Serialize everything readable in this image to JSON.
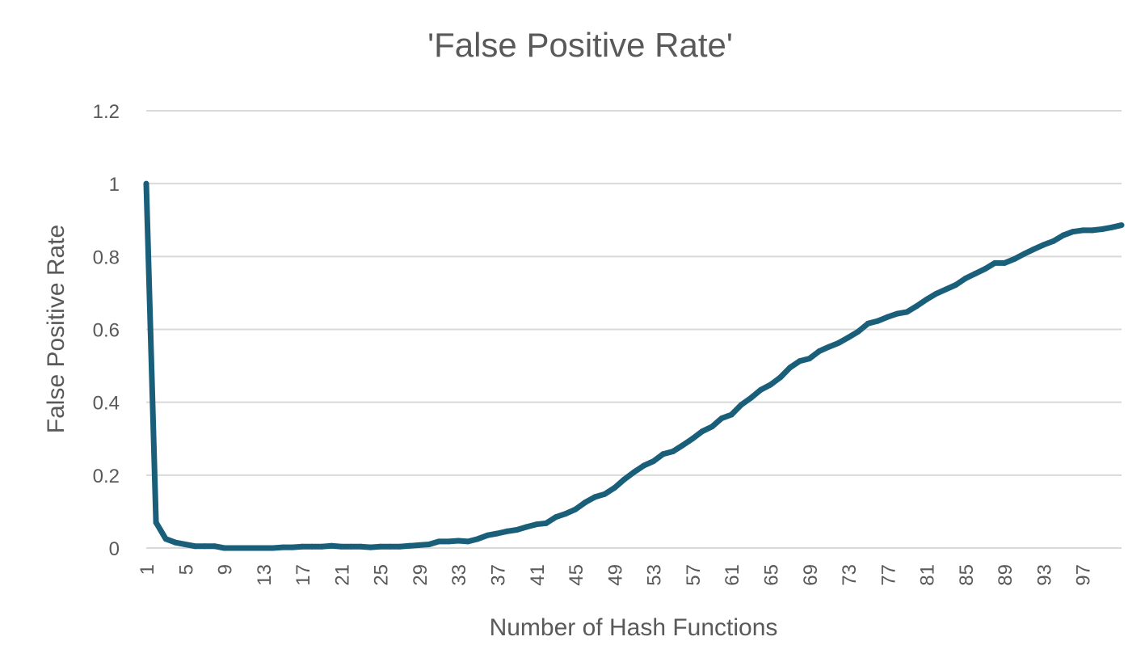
{
  "chart_data": {
    "type": "line",
    "title": "'False Positive Rate'",
    "xlabel": "Number of Hash Functions",
    "ylabel": "False Positive Rate",
    "ylim": [
      0,
      1.2
    ],
    "yticks": [
      0,
      0.2,
      0.4,
      0.6,
      0.8,
      1,
      1.2
    ],
    "ytick_labels": [
      "0",
      "0.2",
      "0.4",
      "0.6",
      "0.8",
      "1",
      "1.2"
    ],
    "xticks": [
      "1",
      "5",
      "9",
      "13",
      "17",
      "21",
      "25",
      "29",
      "33",
      "37",
      "41",
      "45",
      "49",
      "53",
      "57",
      "61",
      "65",
      "69",
      "73",
      "77",
      "81",
      "85",
      "89",
      "93",
      "97"
    ],
    "grid": true,
    "legend": "none",
    "line_color": "#1a5f7a",
    "x": [
      1,
      2,
      3,
      4,
      5,
      6,
      7,
      8,
      9,
      10,
      11,
      12,
      13,
      14,
      15,
      16,
      17,
      18,
      19,
      20,
      21,
      22,
      23,
      24,
      25,
      26,
      27,
      28,
      29,
      30,
      31,
      32,
      33,
      34,
      35,
      36,
      37,
      38,
      39,
      40,
      41,
      42,
      43,
      44,
      45,
      46,
      47,
      48,
      49,
      50,
      51,
      52,
      53,
      54,
      55,
      56,
      57,
      58,
      59,
      60,
      61,
      62,
      63,
      64,
      65,
      66,
      67,
      68,
      69,
      70,
      71,
      72,
      73,
      74,
      75,
      76,
      77,
      78,
      79,
      80,
      81,
      82,
      83,
      84,
      85,
      86,
      87,
      88,
      89,
      90,
      91,
      92,
      93,
      94,
      95,
      96,
      97,
      98,
      99,
      100,
      101
    ],
    "series": [
      {
        "values": [
          1.0,
          0.07,
          0.025,
          0.015,
          0.01,
          0.005,
          0.005,
          0.005,
          0.0,
          0.0,
          0.0,
          0.0,
          0.0,
          0.0,
          0.002,
          0.002,
          0.004,
          0.004,
          0.004,
          0.006,
          0.004,
          0.004,
          0.004,
          0.002,
          0.004,
          0.004,
          0.004,
          0.006,
          0.008,
          0.01,
          0.018,
          0.018,
          0.02,
          0.018,
          0.025,
          0.035,
          0.04,
          0.046,
          0.05,
          0.058,
          0.065,
          0.068,
          0.085,
          0.094,
          0.106,
          0.125,
          0.14,
          0.148,
          0.165,
          0.188,
          0.208,
          0.226,
          0.238,
          0.258,
          0.265,
          0.282,
          0.3,
          0.32,
          0.333,
          0.356,
          0.366,
          0.393,
          0.412,
          0.434,
          0.448,
          0.468,
          0.495,
          0.513,
          0.52,
          0.54,
          0.552,
          0.563,
          0.578,
          0.594,
          0.616,
          0.623,
          0.634,
          0.643,
          0.648,
          0.664,
          0.682,
          0.698,
          0.71,
          0.722,
          0.74,
          0.753,
          0.766,
          0.782,
          0.782,
          0.793,
          0.807,
          0.82,
          0.832,
          0.842,
          0.858,
          0.868,
          0.872,
          0.872,
          0.875,
          0.88,
          0.886
        ]
      }
    ]
  }
}
